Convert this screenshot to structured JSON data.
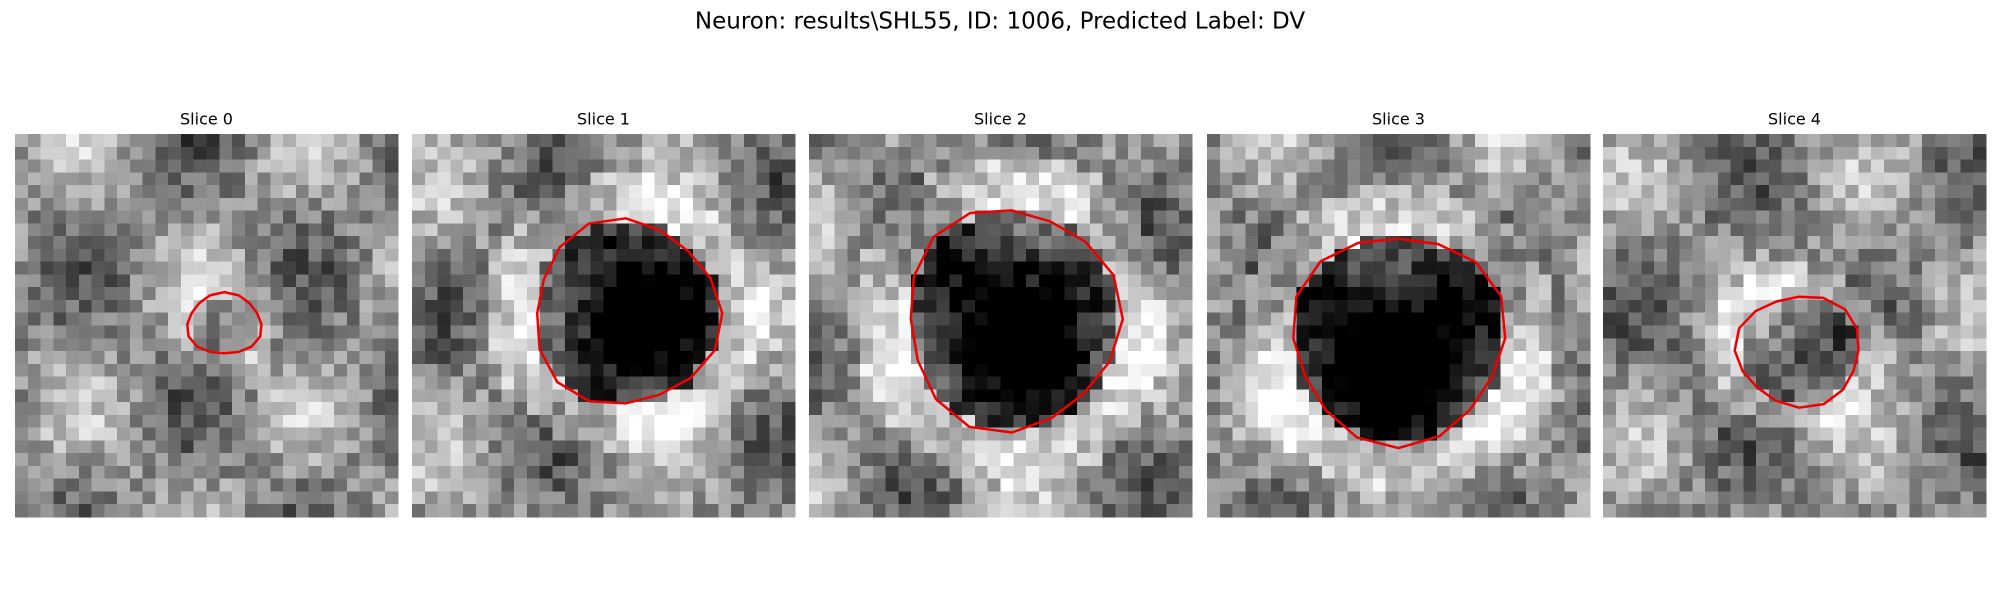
{
  "header": {
    "title": "Neuron: results\\SHL55, ID: 1006, Predicted Label: DV"
  },
  "panels": [
    {
      "title": "Slice 0"
    },
    {
      "title": "Slice 1"
    },
    {
      "title": "Slice 2"
    },
    {
      "title": "Slice 3"
    },
    {
      "title": "Slice 4"
    }
  ]
}
